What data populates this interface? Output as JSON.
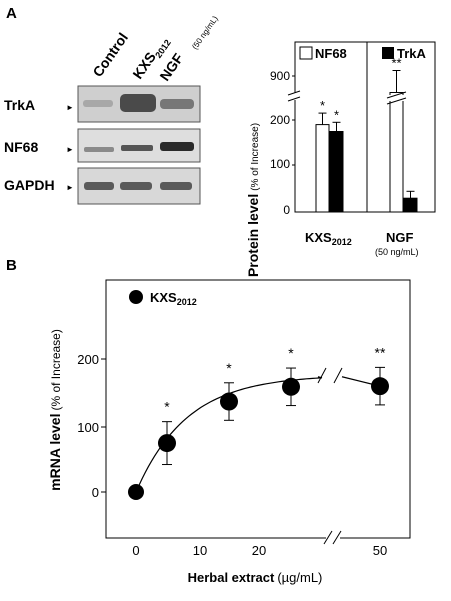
{
  "figure": {
    "panel_a_label": "A",
    "panel_b_label": "B"
  },
  "blot": {
    "lanes": [
      "Control",
      "KXS",
      "NGF"
    ],
    "lane_subscript": "2012",
    "ngf_dose": "(50 ng/mL)",
    "rows": [
      "TrkA",
      "NF68",
      "GAPDH"
    ],
    "marker": "►"
  },
  "chart_data": [
    {
      "type": "bar",
      "ylabel": "Protein level",
      "ylabel_unit": "(% of Increase)",
      "groups": [
        {
          "label": "KXS",
          "subscript": "2012",
          "sublabel": ""
        },
        {
          "label": "NGF",
          "subscript": "",
          "sublabel": "(50 ng/mL)"
        }
      ],
      "series": [
        {
          "name": "NF68",
          "values": [
            190,
            870
          ],
          "errors": [
            25,
            40
          ],
          "significance": [
            "*",
            "**"
          ],
          "color": "#ffffff"
        },
        {
          "name": "TrkA",
          "values": [
            175,
            30
          ],
          "errors": [
            20,
            15
          ],
          "significance": [
            "*",
            ""
          ],
          "color": "#000000"
        }
      ],
      "yticks": [
        "0",
        "100",
        "200",
        "900"
      ],
      "axis_break": "between 200 and 900",
      "ylim_lower": [
        0,
        240
      ],
      "ylim_upper": [
        840,
        920
      ]
    },
    {
      "type": "scatter",
      "ylabel": "mRNA level",
      "ylabel_unit": "(% of Increase)",
      "xlabel": "Herbal extract",
      "xlabel_unit": "(µg/mL)",
      "legend": {
        "label": "KXS",
        "subscript": "2012",
        "position": "top-left"
      },
      "x": [
        0,
        5,
        15,
        25,
        50
      ],
      "y": [
        0,
        73,
        135,
        157,
        158
      ],
      "errors": [
        0,
        32,
        28,
        28,
        28
      ],
      "significance": [
        "",
        "*",
        "*",
        "*",
        "**"
      ],
      "xticks": [
        "0",
        "10",
        "20",
        "50"
      ],
      "yticks": [
        "0",
        "100",
        "200"
      ],
      "axis_break": "x axis between 30 and 45",
      "fit": "saturating curve through the means",
      "ylim": [
        -30,
        260
      ]
    }
  ]
}
